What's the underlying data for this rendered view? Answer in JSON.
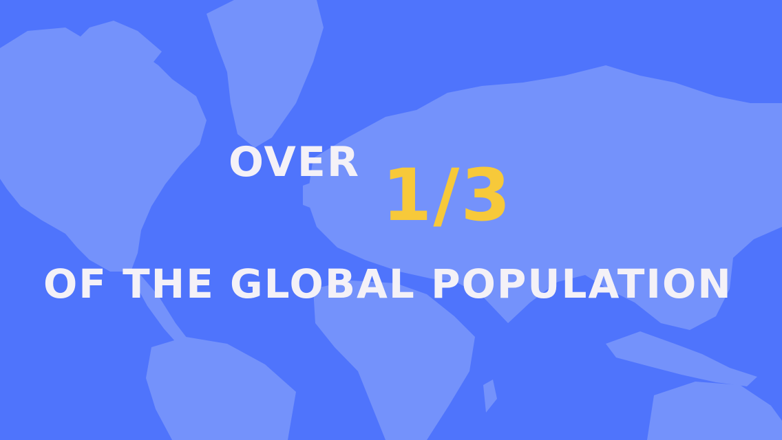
{
  "colors": {
    "background": "#4f74fc",
    "land": "#7492fb",
    "text_white": "#f4f1f7",
    "text_accent": "#f7c93a"
  },
  "headline": {
    "line1": "OVER",
    "fraction": "1/3",
    "line2": "OF THE GLOBAL POPULATION"
  }
}
